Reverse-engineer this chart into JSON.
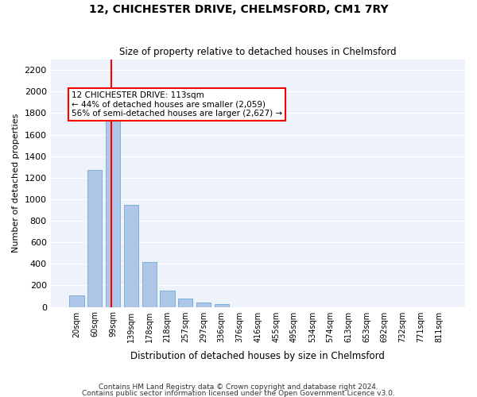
{
  "title": "12, CHICHESTER DRIVE, CHELMSFORD, CM1 7RY",
  "subtitle": "Size of property relative to detached houses in Chelmsford",
  "xlabel": "Distribution of detached houses by size in Chelmsford",
  "ylabel": "Number of detached properties",
  "bar_color": "#aec6e8",
  "bar_edgecolor": "#5a9fd4",
  "background_color": "#eef3fb",
  "grid_color": "#ffffff",
  "categories": [
    "20sqm",
    "60sqm",
    "99sqm",
    "139sqm",
    "178sqm",
    "218sqm",
    "257sqm",
    "297sqm",
    "336sqm",
    "376sqm",
    "416sqm",
    "455sqm",
    "495sqm",
    "534sqm",
    "574sqm",
    "613sqm",
    "653sqm",
    "692sqm",
    "732sqm",
    "771sqm",
    "811sqm"
  ],
  "values": [
    107,
    1270,
    1730,
    950,
    415,
    150,
    75,
    42,
    25,
    0,
    0,
    0,
    0,
    0,
    0,
    0,
    0,
    0,
    0,
    0,
    0
  ],
  "property_size": 113,
  "property_bin_index": 2,
  "red_line_x": 2,
  "annotation_text": "12 CHICHESTER DRIVE: 113sqm\n← 44% of detached houses are smaller (2,059)\n56% of semi-detached houses are larger (2,627) →",
  "ylim": [
    0,
    2300
  ],
  "yticks": [
    0,
    200,
    400,
    600,
    800,
    1000,
    1200,
    1400,
    1600,
    1800,
    2000,
    2200
  ],
  "footnote1": "Contains HM Land Registry data © Crown copyright and database right 2024.",
  "footnote2": "Contains public sector information licensed under the Open Government Licence v3.0."
}
